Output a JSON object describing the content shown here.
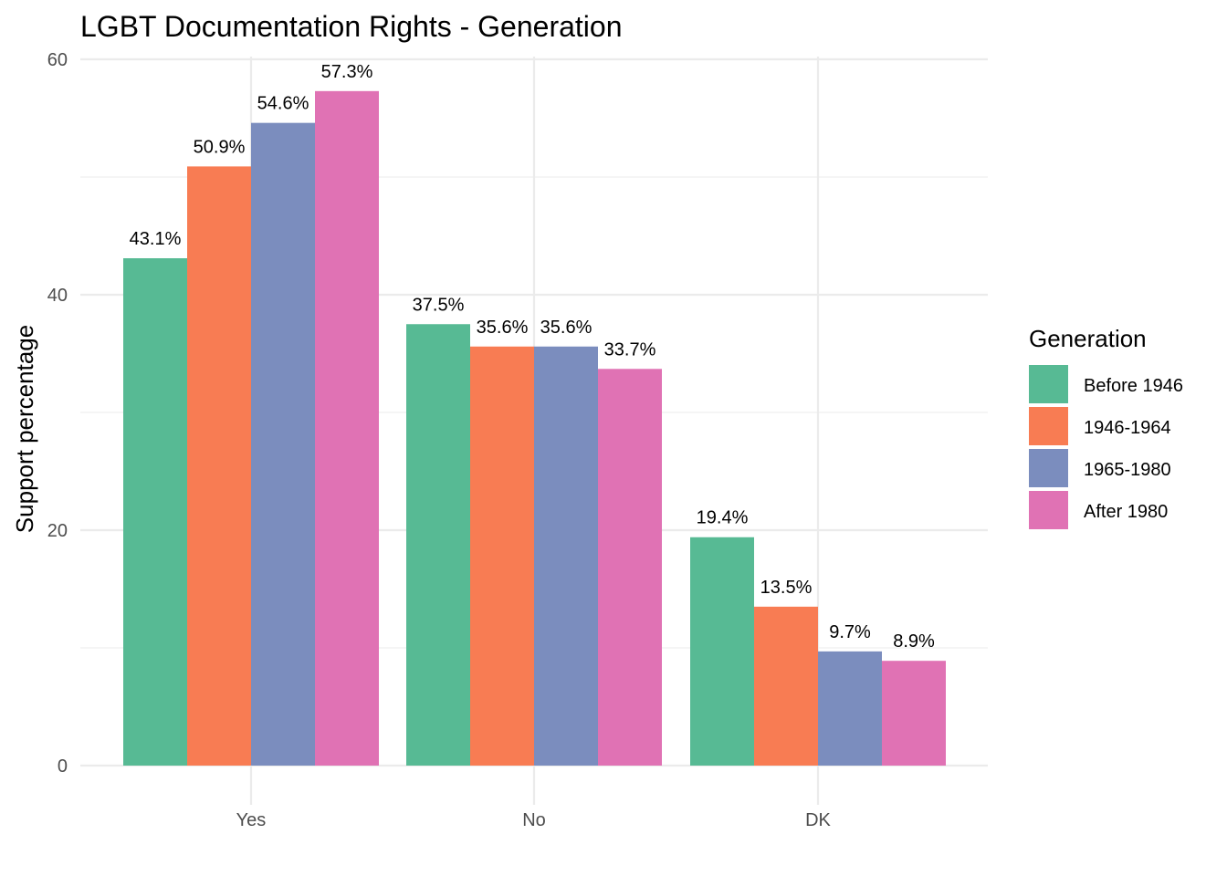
{
  "chart_data": {
    "type": "bar",
    "title": "LGBT Documentation Rights - Generation",
    "xlabel": "",
    "ylabel": "Support percentage",
    "categories": [
      "Yes",
      "No",
      "DK"
    ],
    "series": [
      {
        "name": "Before 1946",
        "color": "#57BA94",
        "values": [
          43.1,
          37.5,
          19.4
        ],
        "labels": [
          "43.1%",
          "37.5%",
          "19.4%"
        ]
      },
      {
        "name": "1946-1964",
        "color": "#F87C53",
        "values": [
          50.9,
          35.6,
          13.5
        ],
        "labels": [
          "50.9%",
          "35.6%",
          "13.5%"
        ]
      },
      {
        "name": "1965-1980",
        "color": "#7B8DBE",
        "values": [
          54.6,
          35.6,
          9.7
        ],
        "labels": [
          "54.6%",
          "35.6%",
          "9.7%"
        ]
      },
      {
        "name": "After 1980",
        "color": "#E072B4",
        "values": [
          57.3,
          33.7,
          8.9
        ],
        "labels": [
          "57.3%",
          "33.7%",
          "8.9%"
        ]
      }
    ],
    "ylim": [
      0,
      60
    ],
    "yticks": [
      0,
      20,
      40,
      60
    ],
    "grid": true,
    "legend": {
      "title": "Generation",
      "position": "right"
    }
  }
}
